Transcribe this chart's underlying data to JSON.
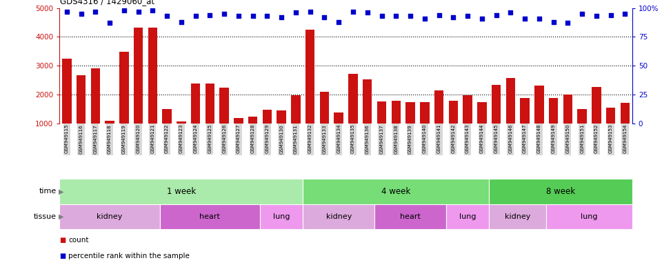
{
  "title": "GDS4316 / 1429060_at",
  "samples": [
    "GSM949115",
    "GSM949116",
    "GSM949117",
    "GSM949118",
    "GSM949119",
    "GSM949120",
    "GSM949121",
    "GSM949122",
    "GSM949123",
    "GSM949124",
    "GSM949125",
    "GSM949126",
    "GSM949127",
    "GSM949128",
    "GSM949129",
    "GSM949130",
    "GSM949131",
    "GSM949132",
    "GSM949133",
    "GSM949134",
    "GSM949135",
    "GSM949136",
    "GSM949137",
    "GSM949138",
    "GSM949139",
    "GSM949140",
    "GSM949141",
    "GSM949142",
    "GSM949143",
    "GSM949144",
    "GSM949145",
    "GSM949146",
    "GSM949147",
    "GSM949148",
    "GSM949149",
    "GSM949150",
    "GSM949151",
    "GSM949152",
    "GSM949153",
    "GSM949154"
  ],
  "counts": [
    3250,
    2670,
    2900,
    1080,
    3480,
    4320,
    4320,
    1500,
    1050,
    2380,
    2380,
    2230,
    1180,
    1230,
    1470,
    1440,
    1960,
    4250,
    2100,
    1380,
    2720,
    2530,
    1760,
    1780,
    1730,
    1720,
    2140,
    1780,
    1960,
    1730,
    2320,
    2570,
    1880,
    2300,
    1880,
    1990,
    1500,
    2260,
    1530,
    1700
  ],
  "percentiles": [
    97,
    95,
    97,
    87,
    98,
    97,
    98,
    93,
    88,
    93,
    94,
    95,
    93,
    93,
    93,
    92,
    96,
    97,
    92,
    88,
    97,
    96,
    93,
    93,
    93,
    91,
    94,
    92,
    93,
    91,
    94,
    96,
    91,
    91,
    88,
    87,
    95,
    93,
    94,
    95
  ],
  "ylim_left": [
    1000,
    5000
  ],
  "ylim_right": [
    0,
    100
  ],
  "yticks_left": [
    1000,
    2000,
    3000,
    4000,
    5000
  ],
  "yticks_right": [
    0,
    25,
    50,
    75,
    100
  ],
  "bar_color": "#cc1111",
  "dot_color": "#0000cc",
  "bg_chart": "#ffffff",
  "bg_xticklabel": "#d8d8d8",
  "grid_color": "#000000",
  "time_groups": [
    {
      "label": "1 week",
      "start": 0,
      "end": 17,
      "color": "#aaeaaa"
    },
    {
      "label": "4 week",
      "start": 17,
      "end": 30,
      "color": "#77dd77"
    },
    {
      "label": "8 week",
      "start": 30,
      "end": 40,
      "color": "#55cc55"
    }
  ],
  "tissue_colors": {
    "kidney": "#ddaadd",
    "heart": "#cc66cc",
    "lung": "#ee99ee"
  },
  "tissue_groups": [
    {
      "label": "kidney",
      "start": 0,
      "end": 7
    },
    {
      "label": "heart",
      "start": 7,
      "end": 14
    },
    {
      "label": "lung",
      "start": 14,
      "end": 17
    },
    {
      "label": "kidney",
      "start": 17,
      "end": 22
    },
    {
      "label": "heart",
      "start": 22,
      "end": 27
    },
    {
      "label": "lung",
      "start": 27,
      "end": 30
    },
    {
      "label": "kidney",
      "start": 30,
      "end": 34
    },
    {
      "label": "lung",
      "start": 34,
      "end": 40
    }
  ],
  "left_axis_color": "#cc1111",
  "right_axis_color": "#0000cc",
  "dotted_grid_values": [
    2000,
    3000,
    4000
  ],
  "figure_width": 9.6,
  "figure_height": 3.84,
  "dpi": 100
}
